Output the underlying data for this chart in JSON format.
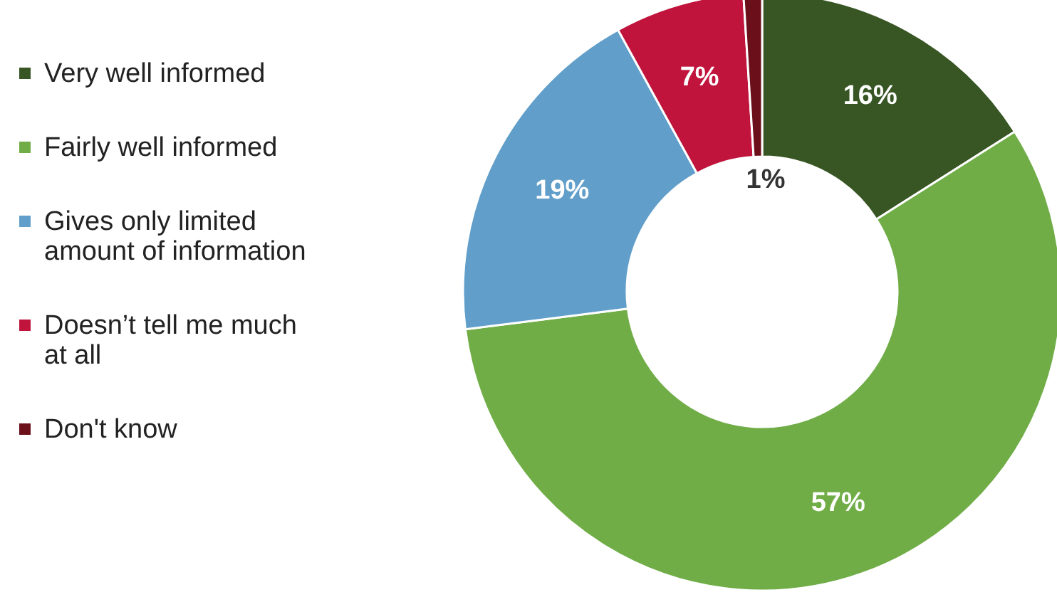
{
  "chart_data": {
    "type": "donut",
    "categories": [
      "Very well informed",
      "Fairly well informed",
      "Gives only limited amount of information",
      "Doesn’t tell me much at all",
      "Don't know"
    ],
    "values": [
      16,
      57,
      19,
      7,
      1
    ],
    "value_labels": [
      "16%",
      "57%",
      "19%",
      "7%",
      "1%"
    ],
    "colors": [
      "#375623",
      "#70ad47",
      "#619fca",
      "#c0143c",
      "#6b0f1a"
    ],
    "legend": "left"
  }
}
